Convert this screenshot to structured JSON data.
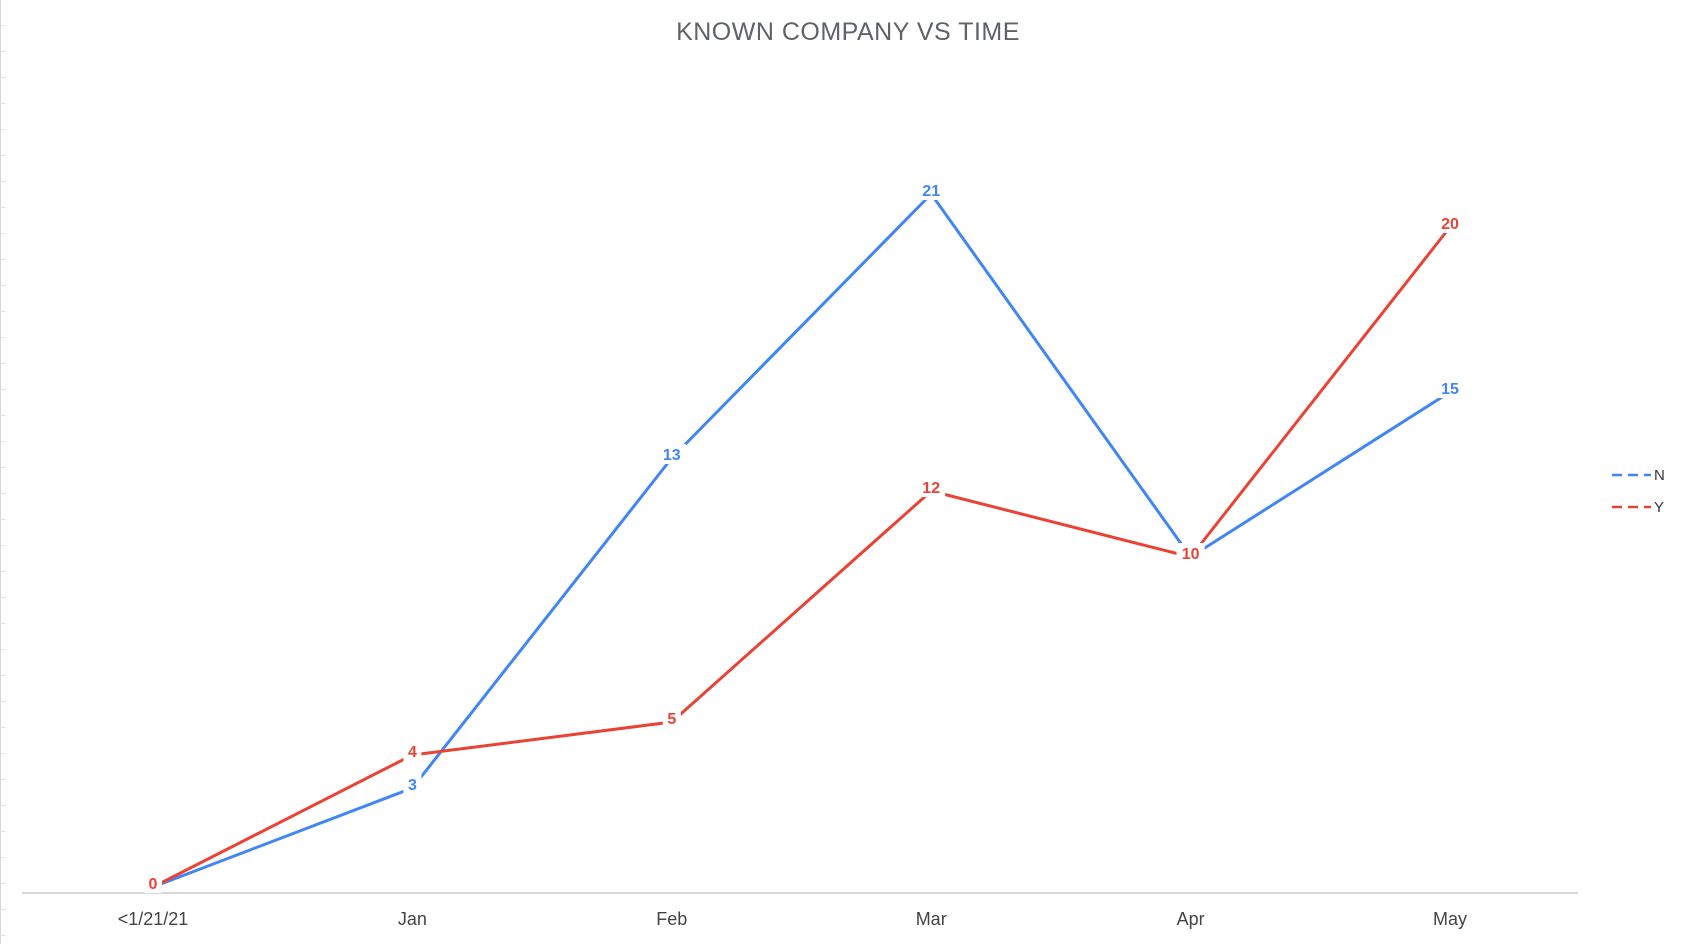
{
  "chart_data": {
    "type": "line",
    "title": "KNOWN COMPANY VS TIME",
    "xlabel": "",
    "ylabel": "",
    "categories": [
      "<1/21/21",
      "Jan",
      "Feb",
      "Mar",
      "Apr",
      "May"
    ],
    "ylim": [
      0,
      24
    ],
    "grid": false,
    "legend_position": "right",
    "series": [
      {
        "name": "N",
        "color": "#4285f4",
        "values": [
          0,
          3,
          13,
          21,
          10,
          15
        ]
      },
      {
        "name": "Y",
        "color": "#ea4335",
        "values": [
          0,
          4,
          5,
          12,
          10,
          20
        ]
      }
    ],
    "data_labels": true,
    "axis_color": "#cccccc"
  }
}
